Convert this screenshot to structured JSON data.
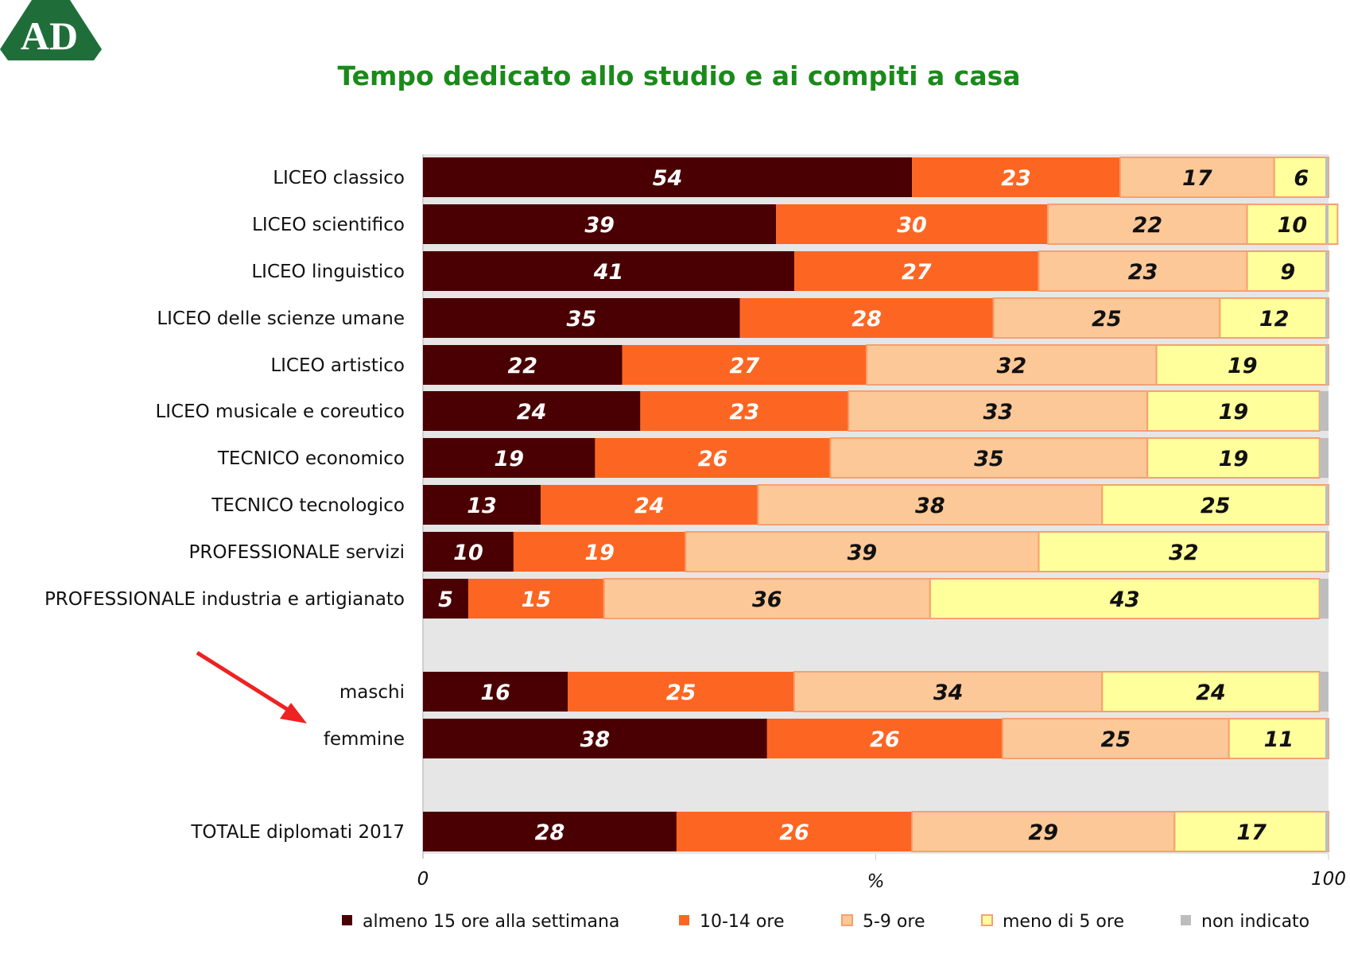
{
  "logo_text": "AD",
  "chart_data": {
    "type": "bar",
    "orientation": "horizontal",
    "stacked": true,
    "title": "Tempo dedicato allo studio e ai compiti a casa",
    "xlabel": "%",
    "xlim": [
      0,
      100
    ],
    "x_ticks": [
      "0",
      "100"
    ],
    "legend_position": "bottom",
    "categories": [
      "LICEO classico",
      "LICEO scientifico",
      "LICEO linguistico",
      "LICEO delle scienze umane",
      "LICEO artistico",
      "LICEO musicale e coreutico",
      "TECNICO economico",
      "TECNICO tecnologico",
      "PROFESSIONALE servizi",
      "PROFESSIONALE industria e artigianato",
      "maschi",
      "femmine",
      "TOTALE diplomati 2017"
    ],
    "series": [
      {
        "name": "almeno 15 ore alla settimana",
        "color": "#4a0002",
        "label_color": "#ffffff",
        "values": [
          54,
          39,
          41,
          35,
          22,
          24,
          19,
          13,
          10,
          5,
          16,
          38,
          28
        ]
      },
      {
        "name": "10-14 ore",
        "color": "#fd6622",
        "label_color": "#ffffff",
        "values": [
          23,
          30,
          27,
          28,
          27,
          23,
          26,
          24,
          19,
          15,
          25,
          26,
          26
        ]
      },
      {
        "name": "5-9 ore",
        "color": "#fcc898",
        "label_color": "#111111",
        "values": [
          17,
          22,
          23,
          25,
          32,
          33,
          35,
          38,
          39,
          36,
          34,
          25,
          29
        ]
      },
      {
        "name": "meno di 5 ore",
        "color": "#ffff9c",
        "label_color": "#111111",
        "values": [
          6,
          10,
          9,
          12,
          19,
          19,
          19,
          25,
          32,
          43,
          24,
          11,
          17
        ]
      },
      {
        "name": "non indicato",
        "color": "#bdbdbd",
        "label_color": "#111111",
        "values": [
          0,
          0,
          0,
          0,
          0,
          1,
          0,
          0,
          0,
          1,
          0,
          0,
          0
        ]
      }
    ],
    "annotation": "red arrow pointing to femmine"
  }
}
